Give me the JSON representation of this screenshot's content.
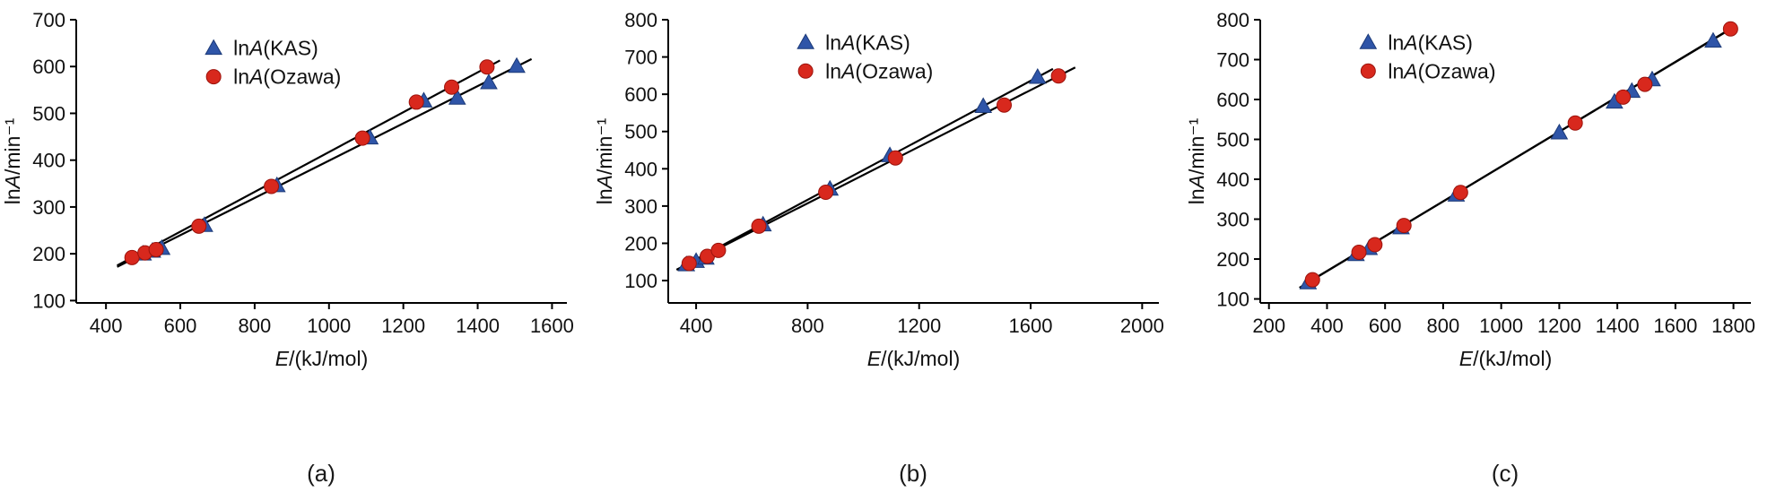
{
  "chart_data": [
    {
      "type": "scatter",
      "caption": "(a)",
      "xlabel": "*E*/(kJ/mol)",
      "ylabel": "ln*A*/min⁻¹",
      "xlim": [
        320,
        1640
      ],
      "ylim": [
        95,
        700
      ],
      "xticks": [
        400,
        600,
        800,
        1000,
        1200,
        1400,
        1600
      ],
      "yticks": [
        100,
        200,
        300,
        400,
        500,
        600,
        700
      ],
      "legend": {
        "fx": 0.28,
        "fy": 0.1
      },
      "line_color": "#000000",
      "series": [
        {
          "name": "ln*A*(KAS)",
          "marker": "triangle",
          "color": "#2f55a8",
          "edge": "#1c3a78",
          "points": [
            [
              500,
              200
            ],
            [
              525,
              206
            ],
            [
              550,
              212
            ],
            [
              665,
              261
            ],
            [
              860,
              346
            ],
            [
              1110,
              448
            ],
            [
              1255,
              527
            ],
            [
              1345,
              533
            ],
            [
              1430,
              566
            ],
            [
              1505,
              601
            ]
          ]
        },
        {
          "name": "ln*A*(Ozawa)",
          "marker": "circle",
          "color": "#d8281d",
          "edge": "#9c130c",
          "points": [
            [
              470,
              192
            ],
            [
              505,
              202
            ],
            [
              535,
              209
            ],
            [
              650,
              259
            ],
            [
              845,
              344
            ],
            [
              1090,
              447
            ],
            [
              1235,
              524
            ],
            [
              1330,
              556
            ],
            [
              1425,
              599
            ]
          ]
        }
      ],
      "fit_lines": [
        {
          "x": [
            430,
            1545
          ],
          "y": [
            172,
            616
          ]
        },
        {
          "x": [
            430,
            1460
          ],
          "y": [
            175,
            613
          ]
        }
      ]
    },
    {
      "type": "scatter",
      "caption": "(b)",
      "xlabel": "*E*/(kJ/mol)",
      "ylabel": "ln*A*/min⁻¹",
      "xlim": [
        300,
        2060
      ],
      "ylim": [
        40,
        800
      ],
      "xticks": [
        400,
        800,
        1200,
        1600,
        2000
      ],
      "yticks": [
        100,
        200,
        300,
        400,
        500,
        600,
        700,
        800
      ],
      "legend": {
        "fx": 0.28,
        "fy": 0.08
      },
      "line_color": "#000000",
      "series": [
        {
          "name": "ln*A*(KAS)",
          "marker": "triangle",
          "color": "#2f55a8",
          "edge": "#1c3a78",
          "points": [
            [
              365,
              143
            ],
            [
              400,
              152
            ],
            [
              435,
              161
            ],
            [
              640,
              250
            ],
            [
              880,
              346
            ],
            [
              1095,
              436
            ],
            [
              1430,
              568
            ],
            [
              1625,
              646
            ]
          ]
        },
        {
          "name": "ln*A*(Ozawa)",
          "marker": "circle",
          "color": "#d8281d",
          "edge": "#9c130c",
          "points": [
            [
              375,
              146
            ],
            [
              440,
              165
            ],
            [
              480,
              181
            ],
            [
              625,
              246
            ],
            [
              865,
              337
            ],
            [
              1115,
              429
            ],
            [
              1505,
              571
            ],
            [
              1700,
              649
            ]
          ]
        }
      ],
      "fit_lines": [
        {
          "x": [
            330,
            1680
          ],
          "y": [
            129,
            668
          ]
        },
        {
          "x": [
            330,
            1760
          ],
          "y": [
            129,
            672
          ]
        }
      ]
    },
    {
      "type": "scatter",
      "caption": "(c)",
      "xlabel": "*E*/(kJ/mol)",
      "ylabel": "ln*A*/min⁻¹",
      "xlim": [
        170,
        1860
      ],
      "ylim": [
        90,
        800
      ],
      "xticks": [
        200,
        400,
        600,
        800,
        1000,
        1200,
        1400,
        1600,
        1800
      ],
      "yticks": [
        100,
        200,
        300,
        400,
        500,
        600,
        700,
        800
      ],
      "legend": {
        "fx": 0.22,
        "fy": 0.08
      },
      "line_color": "#000000",
      "series": [
        {
          "name": "ln*A*(KAS)",
          "marker": "triangle",
          "color": "#2f55a8",
          "edge": "#1c3a78",
          "points": [
            [
              335,
              141
            ],
            [
              500,
              212
            ],
            [
              545,
              227
            ],
            [
              655,
              279
            ],
            [
              845,
              361
            ],
            [
              1200,
              517
            ],
            [
              1390,
              594
            ],
            [
              1450,
              621
            ],
            [
              1520,
              650
            ],
            [
              1730,
              747
            ]
          ]
        },
        {
          "name": "ln*A*(Ozawa)",
          "marker": "circle",
          "color": "#d8281d",
          "edge": "#9c130c",
          "points": [
            [
              350,
              148
            ],
            [
              510,
              217
            ],
            [
              565,
              236
            ],
            [
              665,
              284
            ],
            [
              860,
              367
            ],
            [
              1255,
              541
            ],
            [
              1420,
              606
            ],
            [
              1495,
              638
            ],
            [
              1790,
              777
            ]
          ]
        }
      ],
      "fit_lines": [
        {
          "x": [
            305,
            1800
          ],
          "y": [
            128,
            782
          ]
        },
        {
          "x": [
            315,
            1805
          ],
          "y": [
            133,
            783
          ]
        }
      ]
    }
  ]
}
